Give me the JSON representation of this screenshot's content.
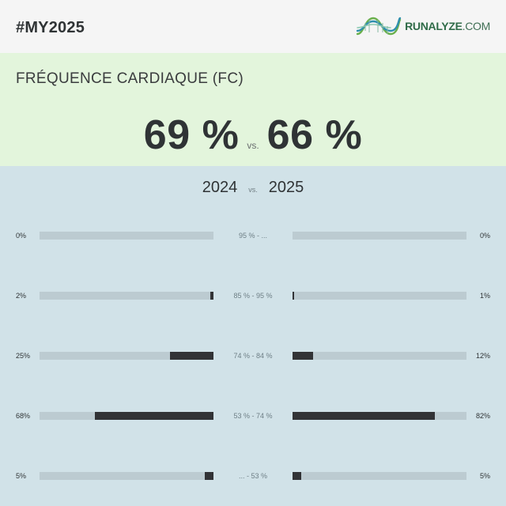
{
  "header": {
    "hashtag": "#MY2025",
    "brand_bold": "RUNALYZE",
    "brand_light": ".COM"
  },
  "hero": {
    "title": "FRÉQUENCE CARDIAQUE (FC)",
    "value_left": "69 %",
    "vs": "vs.",
    "value_right": "66 %"
  },
  "years": {
    "left": "2024",
    "vs": "vs.",
    "right": "2025"
  },
  "zones": [
    {
      "range": "95 % - ...",
      "left_pct": "0%",
      "left_value": 0,
      "right_pct": "0%",
      "right_value": 0
    },
    {
      "range": "85 % - 95 %",
      "left_pct": "2%",
      "left_value": 2,
      "right_pct": "1%",
      "right_value": 1
    },
    {
      "range": "74 % - 84 %",
      "left_pct": "25%",
      "left_value": 25,
      "right_pct": "12%",
      "right_value": 12
    },
    {
      "range": "53 % - 74 %",
      "left_pct": "68%",
      "left_value": 68,
      "right_pct": "82%",
      "right_value": 82
    },
    {
      "range": "... - 53 %",
      "left_pct": "5%",
      "left_value": 5,
      "right_pct": "5%",
      "right_value": 5
    }
  ],
  "colors": {
    "header_bg": "#f5f5f5",
    "hero_bg": "#e3f5dc",
    "body_bg": "#d1e2e8",
    "bar_track": "#bccbd1",
    "bar_fill": "#323336",
    "brand": "#2f6b48"
  },
  "icons": {
    "brand_logo": "runalyze-dna-logo-icon"
  }
}
